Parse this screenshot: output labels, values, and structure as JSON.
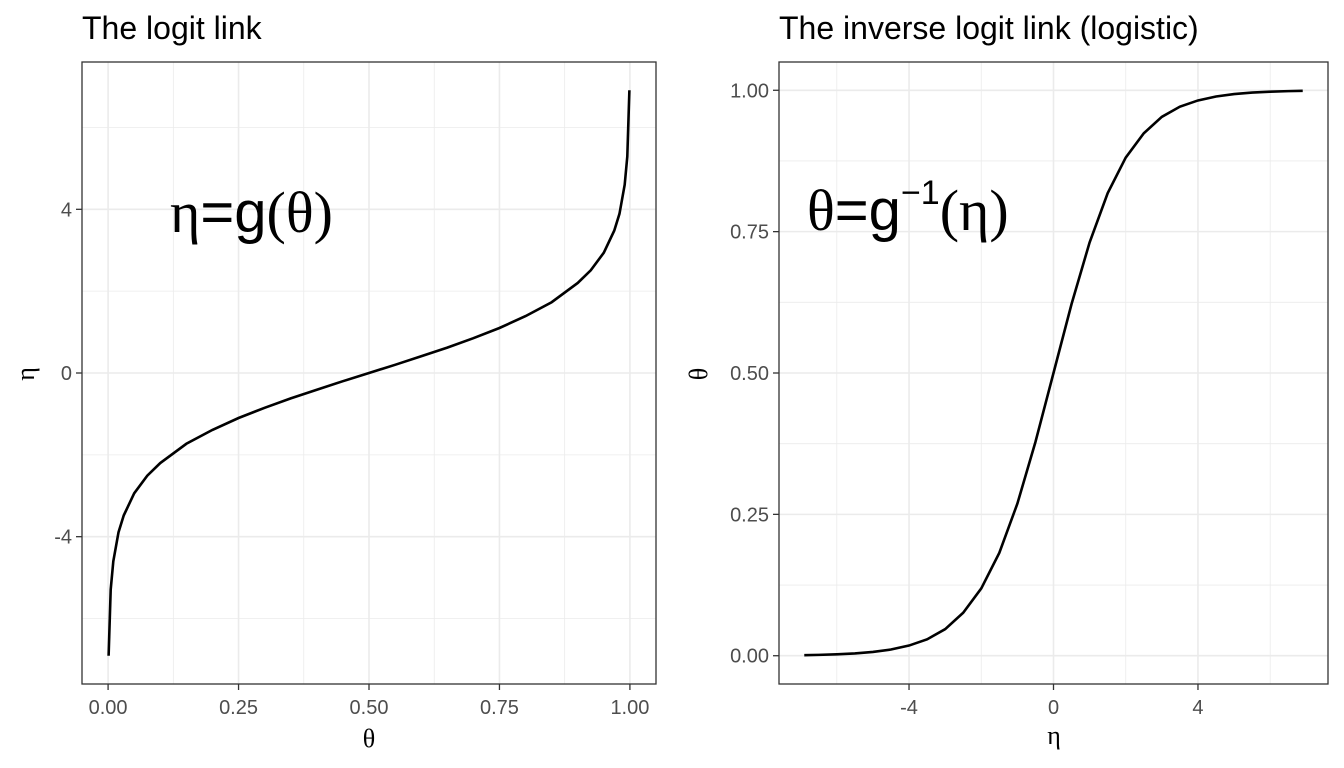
{
  "chart_data": [
    {
      "type": "line",
      "title": "The logit link",
      "xlabel": "θ",
      "ylabel": "η",
      "xlim": [
        -0.05,
        1.05
      ],
      "ylim": [
        -7.6,
        7.6
      ],
      "xticks": [
        0,
        0.25,
        0.5,
        0.75,
        1
      ],
      "xtick_labels": [
        "0.00",
        "0.25",
        "0.50",
        "0.75",
        "1.00"
      ],
      "xticks_minor": [
        0.125,
        0.375,
        0.625,
        0.875
      ],
      "yticks": [
        -4,
        0,
        4
      ],
      "ytick_labels": [
        "-4",
        "0",
        "4"
      ],
      "yticks_minor": [
        -6,
        -2,
        2,
        6
      ],
      "grid": true,
      "annotation": {
        "lhs": "η",
        "eq": "=g",
        "open": "(",
        "arg": "θ",
        "close": ")"
      },
      "series": [
        {
          "x": [
            0.001,
            0.005,
            0.01,
            0.02,
            0.03,
            0.05,
            0.075,
            0.1,
            0.15,
            0.2,
            0.25,
            0.3,
            0.35,
            0.4,
            0.45,
            0.5,
            0.55,
            0.6,
            0.65,
            0.7,
            0.75,
            0.8,
            0.85,
            0.9,
            0.925,
            0.95,
            0.97,
            0.98,
            0.99,
            0.995,
            0.999
          ],
          "y": [
            -6.91,
            -5.29,
            -4.6,
            -3.89,
            -3.48,
            -2.94,
            -2.51,
            -2.2,
            -1.73,
            -1.39,
            -1.1,
            -0.85,
            -0.62,
            -0.41,
            -0.2,
            0,
            0.2,
            0.41,
            0.62,
            0.85,
            1.1,
            1.39,
            1.73,
            2.2,
            2.51,
            2.94,
            3.48,
            3.89,
            4.6,
            5.29,
            6.91
          ]
        }
      ]
    },
    {
      "type": "line",
      "title": "The inverse logit link (logistic)",
      "xlabel": "η",
      "ylabel": "θ",
      "xlim": [
        -7.6,
        7.6
      ],
      "ylim": [
        -0.05,
        1.05
      ],
      "xticks": [
        -4,
        0,
        4
      ],
      "xtick_labels": [
        "-4",
        "0",
        "4"
      ],
      "xticks_minor": [
        -6,
        -2,
        2,
        6
      ],
      "yticks": [
        0,
        0.25,
        0.5,
        0.75,
        1
      ],
      "ytick_labels": [
        "0.00",
        "0.25",
        "0.50",
        "0.75",
        "1.00"
      ],
      "yticks_minor": [
        0.125,
        0.375,
        0.625,
        0.875
      ],
      "grid": true,
      "annotation": {
        "lhs": "θ",
        "eq": "=g",
        "sup": "−1",
        "open": "(",
        "arg": "η",
        "close": ")"
      },
      "series": [
        {
          "x": [
            -6.9,
            -6.5,
            -6,
            -5.5,
            -5,
            -4.5,
            -4,
            -3.5,
            -3,
            -2.5,
            -2,
            -1.5,
            -1,
            -0.5,
            0,
            0.5,
            1,
            1.5,
            2,
            2.5,
            3,
            3.5,
            4,
            4.5,
            5,
            5.5,
            6,
            6.5,
            6.9
          ],
          "y": [
            0.001,
            0.0015,
            0.0025,
            0.0041,
            0.0067,
            0.011,
            0.018,
            0.029,
            0.047,
            0.076,
            0.119,
            0.182,
            0.269,
            0.378,
            0.5,
            0.622,
            0.731,
            0.818,
            0.881,
            0.924,
            0.953,
            0.971,
            0.982,
            0.989,
            0.9933,
            0.9959,
            0.9975,
            0.9985,
            0.999
          ]
        }
      ]
    }
  ]
}
